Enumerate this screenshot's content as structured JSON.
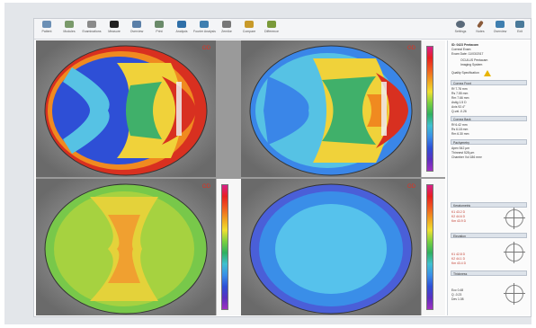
{
  "toolbar": {
    "buttons": [
      {
        "label": "Patient",
        "icon": "patient-icon",
        "color": "#6b8fb5"
      },
      {
        "label": "Modules",
        "icon": "modules-icon",
        "color": "#7a9a6b"
      },
      {
        "label": "Examinations",
        "icon": "exam-icon",
        "color": "#8a8a8a"
      },
      {
        "label": "Measure",
        "icon": "measure-icon",
        "color": "#222222"
      },
      {
        "label": "Overview",
        "icon": "overview-icon",
        "color": "#5a7fa8"
      },
      {
        "label": "Print",
        "icon": "print-icon",
        "color": "#6a8a6a"
      },
      {
        "label": "Analysis",
        "icon": "analysis-icon",
        "color": "#2f6fa8"
      },
      {
        "label": "Fourier Analysis",
        "icon": "fourier-icon",
        "color": "#3f7fb0"
      },
      {
        "label": "Zernike",
        "icon": "zernike-icon",
        "color": "#777777"
      },
      {
        "label": "Compare",
        "icon": "compare-icon",
        "color": "#c89a2a"
      },
      {
        "label": "Difference",
        "icon": "difference-icon",
        "color": "#7a9a3a"
      }
    ],
    "right_buttons": [
      {
        "label": "Settings",
        "icon": "gear-icon",
        "color": "#5a6a7a"
      },
      {
        "label": "Notes",
        "icon": "pen-icon",
        "color": "#8a5a3a"
      },
      {
        "label": "Overview",
        "icon": "monitor-icon",
        "color": "#3f7fb0"
      },
      {
        "label": "Exit",
        "icon": "exit-icon",
        "color": "#4a7a9a"
      }
    ]
  },
  "maps": [
    {
      "name": "axial-curvature-front",
      "corner": "OD",
      "colors": [
        "#2e4fd6",
        "#3a86e8",
        "#56c2e4",
        "#40b06a",
        "#f0d23a",
        "#f08a20",
        "#d83020"
      ]
    },
    {
      "name": "axial-curvature-back",
      "corner": "OD",
      "colors": [
        "#2e4fd6",
        "#3a86e8",
        "#56c2e4",
        "#40b06a",
        "#f0d23a",
        "#f08a20",
        "#d83020"
      ]
    },
    {
      "name": "elevation-front",
      "corner": "OD",
      "colors": [
        "#78c84a",
        "#a6d240",
        "#e4d23a",
        "#f0a030",
        "#e87a20"
      ]
    },
    {
      "name": "elevation-back",
      "corner": "OD",
      "colors": [
        "#4a5fd8",
        "#3a8ee8",
        "#56c2ec"
      ]
    }
  ],
  "scale_colors_a": [
    "#d8208a",
    "#e82020",
    "#f05a20",
    "#f0a020",
    "#f0e030",
    "#7ad040",
    "#30b060",
    "#40c0d0",
    "#3a8ee8",
    "#2e4fd6",
    "#5a30c0",
    "#a030c0"
  ],
  "scale_colors_b": [
    "#d8208a",
    "#e82020",
    "#f05a20",
    "#f0a020",
    "#f0e030",
    "#7ad040",
    "#30b060",
    "#40c0d0",
    "#3a8ee8",
    "#2e4fd6",
    "#5a30c0",
    "#a030c0"
  ],
  "sidebar": {
    "patient_id": "ID: 0423   Pentacam",
    "patient_sub": "Corneal Exam",
    "exam_date": "Exam Date: 11/03/2017",
    "device": "OCULUS Pentacam",
    "device_sub": "Imaging System",
    "quality": "Quality Specification",
    "section_cornea": "Cornea Front",
    "section_cornea_rows": [
      "Rf  7.78 mm",
      "Rs  7.55 mm",
      "Rm  7.66 mm",
      "Astig 1.5 D",
      "Axis 92.4°",
      "Q-val -0.26"
    ],
    "section_back": "Cornea Back",
    "section_back_rows": [
      "Rf  6.42 mm",
      "Rs  6.18 mm",
      "Rm  6.30 mm"
    ],
    "section_pachy": "Pachymetry",
    "section_pachy_rows": [
      "Apex 542 µm",
      "Thinnest 528 µm",
      "Chamber Vol 186 mm³"
    ],
    "section_1": "Keratometric",
    "section_2": "Elevation",
    "section_3": "Thickness",
    "red_rows_1": [
      "K1 43.2 D",
      "K2 44.6 D",
      "Km 43.9 D"
    ],
    "red_rows_2": [
      "K1 42.8 D",
      "K2 44.1 D",
      "Km 43.4 D"
    ],
    "rows_bottom": [
      "Ecc 0.48",
      "Q -0.23",
      "Dev 1.08"
    ]
  }
}
